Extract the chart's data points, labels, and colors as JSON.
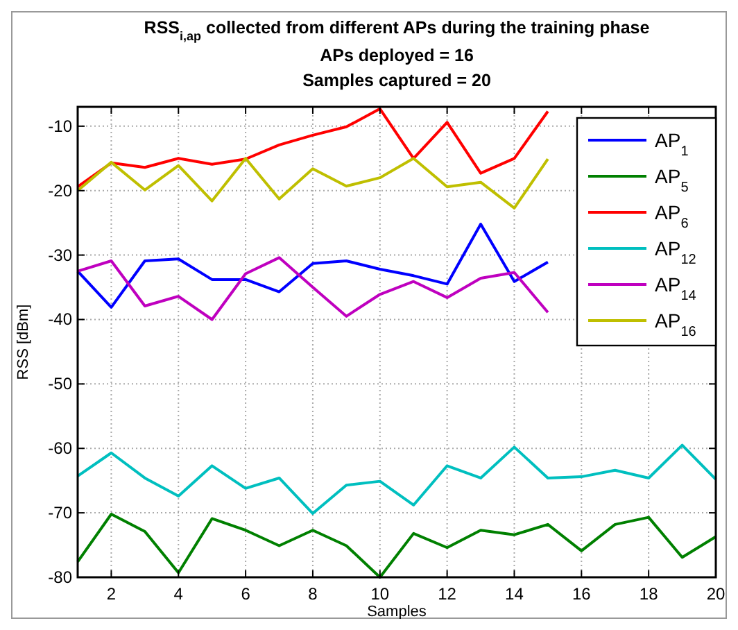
{
  "chart_data": {
    "type": "line",
    "title": "RSS$_{i,ap}$ collected from different APs during the training phase",
    "subtitle": "APs deployed = 16\nSamples captured = 20",
    "xlabel": "Samples",
    "ylabel": "RSS [dBm]",
    "x": [
      1,
      2,
      3,
      4,
      5,
      6,
      7,
      8,
      9,
      10,
      11,
      12,
      13,
      14,
      15,
      16,
      17,
      18,
      19,
      20
    ],
    "xlim": [
      1,
      20
    ],
    "xticks": [
      2,
      4,
      6,
      8,
      10,
      12,
      14,
      16,
      18,
      20
    ],
    "ylim": [
      -80,
      -7
    ],
    "yticks": [
      -80,
      -70,
      -60,
      -50,
      -40,
      -30,
      -20,
      -10
    ],
    "grid": true,
    "legend": "top right",
    "marker": "none",
    "line_style": "solid",
    "series": [
      {
        "name": "AP$_{1}$",
        "color": "#0000ff",
        "values": [
          -32.5,
          -38.1,
          -30.9,
          -30.6,
          -33.8,
          -33.8,
          -35.7,
          -31.3,
          -30.9,
          -32.2,
          -33.2,
          -34.5,
          -25.2,
          -34.1,
          -31.1,
          null,
          null,
          null,
          null,
          null
        ]
      },
      {
        "name": "AP$_{5}$",
        "color": "#008000",
        "values": [
          -77.6,
          -70.2,
          -72.9,
          -79.3,
          -70.9,
          -72.7,
          -75.1,
          -72.7,
          -75.1,
          -80,
          -73.2,
          -75.4,
          -72.7,
          -73.4,
          -71.8,
          -75.9,
          -71.8,
          -70.7,
          -76.9,
          -73.7
        ]
      },
      {
        "name": "AP$_{6}$",
        "color": "#ff0000",
        "values": [
          -19.4,
          -15.7,
          -16.4,
          -15,
          -15.9,
          -15.1,
          -12.9,
          -11.4,
          -10.1,
          -7.3,
          -15,
          -9.4,
          -17.3,
          -15,
          -7.7,
          null,
          null,
          null,
          null,
          null
        ]
      },
      {
        "name": "AP$_{12}$",
        "color": "#00bfbf",
        "values": [
          -64.3,
          -60.7,
          -64.6,
          -67.4,
          -62.7,
          -66.2,
          -64.6,
          -70.1,
          -65.7,
          -65.1,
          -68.8,
          -62.7,
          -64.6,
          -59.8,
          -64.6,
          -64.4,
          -63.4,
          -64.6,
          -59.5,
          -64.8
        ]
      },
      {
        "name": "AP$_{14}$",
        "color": "#bf00bf",
        "values": [
          -32.5,
          -30.9,
          -37.9,
          -36.4,
          -40,
          -32.9,
          -30.4,
          -35,
          -39.5,
          -36.1,
          -34.1,
          -36.6,
          -33.6,
          -32.7,
          -38.9,
          null,
          null,
          null,
          null,
          null
        ]
      },
      {
        "name": "AP$_{16}$",
        "color": "#bfbf00",
        "values": [
          -20,
          -15.6,
          -19.9,
          -16.1,
          -21.6,
          -15,
          -21.3,
          -16.6,
          -19.3,
          -18,
          -15,
          -19.4,
          -18.7,
          -22.7,
          -15.1,
          null,
          null,
          null,
          null,
          null
        ]
      }
    ]
  }
}
